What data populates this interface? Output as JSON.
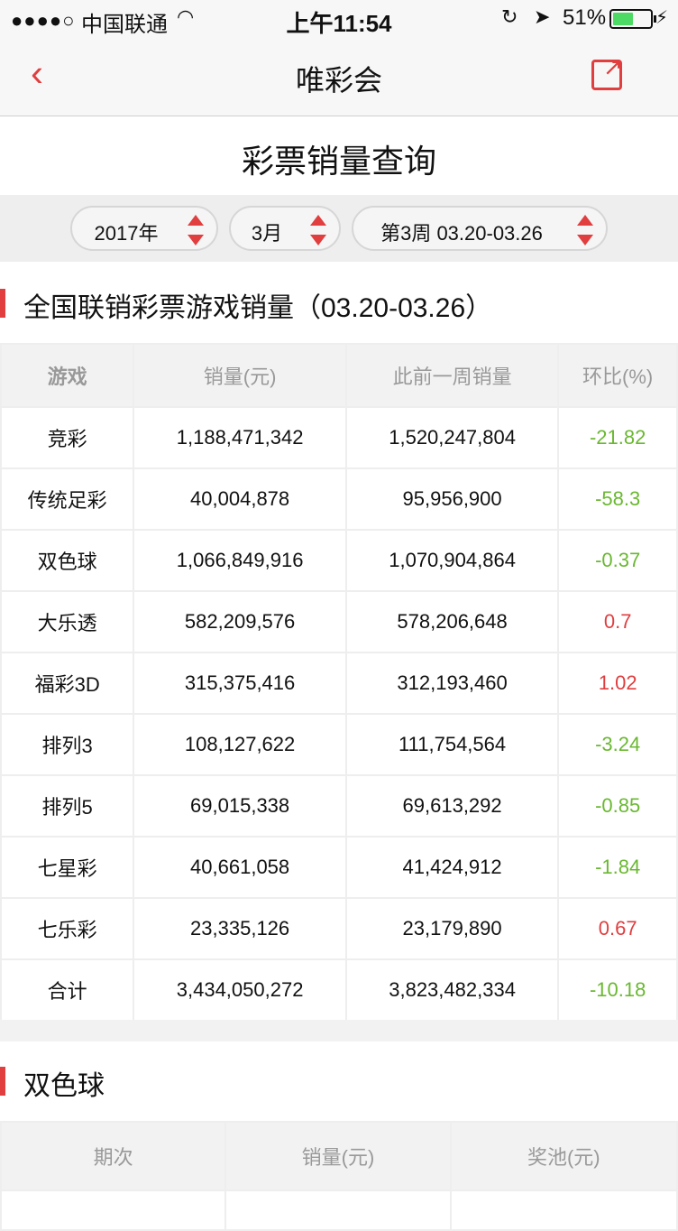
{
  "status_bar": {
    "signal": "●●●●○",
    "carrier": "中国联通",
    "time": "上午11:54",
    "battery": "51%"
  },
  "nav": {
    "title": "唯彩会"
  },
  "page": {
    "title": "彩票销量查询"
  },
  "filters": {
    "year": "2017年",
    "month": "3月",
    "week": "第3周 03.20-03.26"
  },
  "section1": {
    "title": "全国联销彩票游戏销量（03.20-03.26）",
    "headers": [
      "游戏",
      "销量(元)",
      "此前一周销量",
      "环比(%)"
    ],
    "rows": [
      {
        "game": "竞彩",
        "sales": "1,188,471,342",
        "prev": "1,520,247,804",
        "ratio": "-21.82",
        "trend": "down"
      },
      {
        "game": "传统足彩",
        "sales": "40,004,878",
        "prev": "95,956,900",
        "ratio": "-58.3",
        "trend": "down"
      },
      {
        "game": "双色球",
        "sales": "1,066,849,916",
        "prev": "1,070,904,864",
        "ratio": "-0.37",
        "trend": "down"
      },
      {
        "game": "大乐透",
        "sales": "582,209,576",
        "prev": "578,206,648",
        "ratio": "0.7",
        "trend": "up"
      },
      {
        "game": "福彩3D",
        "sales": "315,375,416",
        "prev": "312,193,460",
        "ratio": "1.02",
        "trend": "up"
      },
      {
        "game": "排列3",
        "sales": "108,127,622",
        "prev": "111,754,564",
        "ratio": "-3.24",
        "trend": "down"
      },
      {
        "game": "排列5",
        "sales": "69,015,338",
        "prev": "69,613,292",
        "ratio": "-0.85",
        "trend": "down"
      },
      {
        "game": "七星彩",
        "sales": "40,661,058",
        "prev": "41,424,912",
        "ratio": "-1.84",
        "trend": "down"
      },
      {
        "game": "七乐彩",
        "sales": "23,335,126",
        "prev": "23,179,890",
        "ratio": "0.67",
        "trend": "up"
      },
      {
        "game": "合计",
        "sales": "3,434,050,272",
        "prev": "3,823,482,334",
        "ratio": "-10.18",
        "trend": "down"
      }
    ]
  },
  "section2": {
    "title": "双色球",
    "headers": [
      "期次",
      "销量(元)",
      "奖池(元)"
    ]
  },
  "colors": {
    "accent": "#e03e3f",
    "positive": "#e03e3f",
    "negative": "#6ab831",
    "header_text": "#999999",
    "text": "#111111",
    "border": "#eeeeee"
  }
}
